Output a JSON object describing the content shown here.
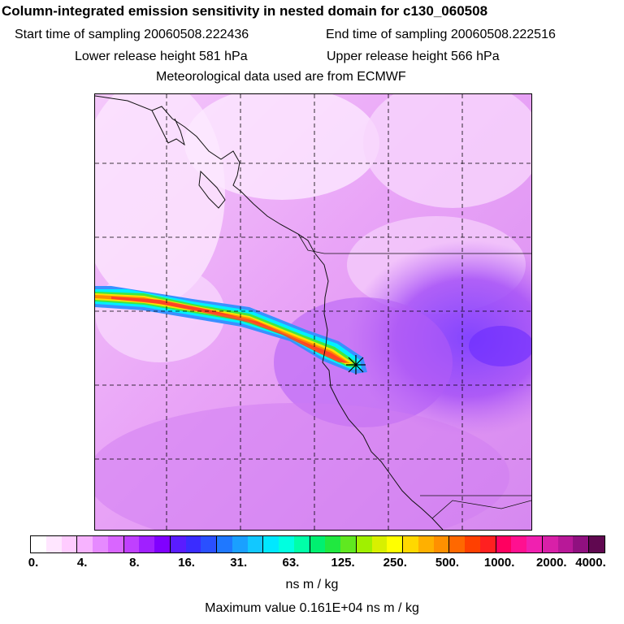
{
  "header": {
    "title": "Column-integrated emission sensitivity in nested domain for c130_060508",
    "start_label": "Start time of sampling 20060508.222436",
    "end_label": "End time of sampling 20060508.222516",
    "lower_label": "Lower release height  581 hPa",
    "upper_label": "Upper release height  566 hPa",
    "met_label": "Meteorological data used are from ECMWF"
  },
  "legend": {
    "ticks": [
      "0.",
      "4.",
      "8.",
      "16.",
      "31.",
      "63.",
      "125.",
      "250.",
      "500.",
      "1000.",
      "2000.",
      "4000."
    ],
    "colors": [
      "#ffffff",
      "#ffe6ff",
      "#ffccff",
      "#f7b3ff",
      "#e68aff",
      "#d966ff",
      "#c040ff",
      "#a020ff",
      "#8000ff",
      "#5a1cff",
      "#3a2cff",
      "#2a50ff",
      "#1f78ff",
      "#1aa0ff",
      "#12c8ff",
      "#00e8ff",
      "#00ffe0",
      "#00ffa8",
      "#00f070",
      "#20e840",
      "#60e820",
      "#a0f000",
      "#d8f000",
      "#ffff00",
      "#ffd800",
      "#ffb000",
      "#ff9000",
      "#ff6800",
      "#ff4000",
      "#ff2020",
      "#ff0060",
      "#ff1090",
      "#f020b0",
      "#d820a8",
      "#b81898",
      "#901080",
      "#600850"
    ],
    "unit": "ns m / kg",
    "max_value": "Maximum value  0.161E+04 ns m / kg"
  },
  "map": {
    "receptor_marker": "star-icon"
  }
}
